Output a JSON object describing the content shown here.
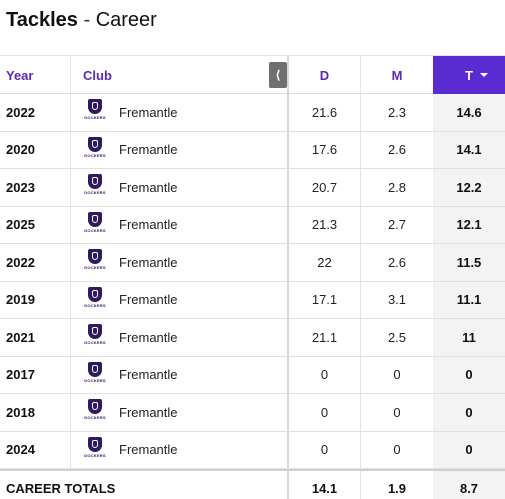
{
  "title": {
    "main": "Tackles",
    "separator": "-",
    "sub": "Career"
  },
  "columns": {
    "year": "Year",
    "club": "Club",
    "d": "D",
    "m": "M",
    "t": "T"
  },
  "scroll_glyph": "⟨",
  "rows": [
    {
      "year": "2022",
      "club": "Fremantle",
      "logo": "DOCKERS",
      "d": "21.6",
      "m": "2.3",
      "t": "14.6"
    },
    {
      "year": "2020",
      "club": "Fremantle",
      "logo": "DOCKERS",
      "d": "17.6",
      "m": "2.6",
      "t": "14.1"
    },
    {
      "year": "2023",
      "club": "Fremantle",
      "logo": "DOCKERS",
      "d": "20.7",
      "m": "2.8",
      "t": "12.2"
    },
    {
      "year": "2025",
      "club": "Fremantle",
      "logo": "DOCKERS",
      "d": "21.3",
      "m": "2.7",
      "t": "12.1"
    },
    {
      "year": "2022",
      "club": "Fremantle",
      "logo": "DOCKERS",
      "d": "22",
      "m": "2.6",
      "t": "11.5"
    },
    {
      "year": "2019",
      "club": "Fremantle",
      "logo": "DOCKERS",
      "d": "17.1",
      "m": "3.1",
      "t": "11.1"
    },
    {
      "year": "2021",
      "club": "Fremantle",
      "logo": "DOCKERS",
      "d": "21.1",
      "m": "2.5",
      "t": "11"
    },
    {
      "year": "2017",
      "club": "Fremantle",
      "logo": "DOCKERS",
      "d": "0",
      "m": "0",
      "t": "0"
    },
    {
      "year": "2018",
      "club": "Fremantle",
      "logo": "DOCKERS",
      "d": "0",
      "m": "0",
      "t": "0"
    },
    {
      "year": "2024",
      "club": "Fremantle",
      "logo": "DOCKERS",
      "d": "0",
      "m": "0",
      "t": "0"
    }
  ],
  "totals": {
    "label": "CAREER TOTALS",
    "d": "14.1",
    "m": "1.9",
    "t": "8.7"
  },
  "colors": {
    "accent": "#5b2bd2",
    "header_text": "#5b2bb0",
    "club_logo": "#2e1a5e"
  }
}
